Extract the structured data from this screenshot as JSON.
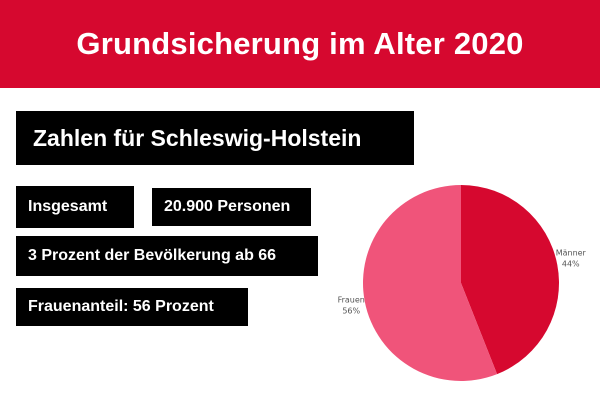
{
  "header": {
    "title": "Grundsicherung im Alter 2020"
  },
  "subtitle": "Zahlen für Schleswig-Holstein",
  "stats": {
    "total_label": "Insgesamt",
    "total_value": "20.900 Personen",
    "share_population": "3 Prozent der Bevölkerung ab 66",
    "women_share": "Frauenanteil: 56 Prozent"
  },
  "colors": {
    "header_bg": "#d6082f",
    "box_bg": "#000000",
    "maenner": "#d6082f",
    "frauen": "#f0547a"
  },
  "chart_data": {
    "type": "pie",
    "title": "",
    "slices": [
      {
        "label": "Männer",
        "percent_label": "44%",
        "value": 44,
        "color": "#d6082f"
      },
      {
        "label": "Frauen",
        "percent_label": "56%",
        "value": 56,
        "color": "#f0547a"
      }
    ]
  }
}
